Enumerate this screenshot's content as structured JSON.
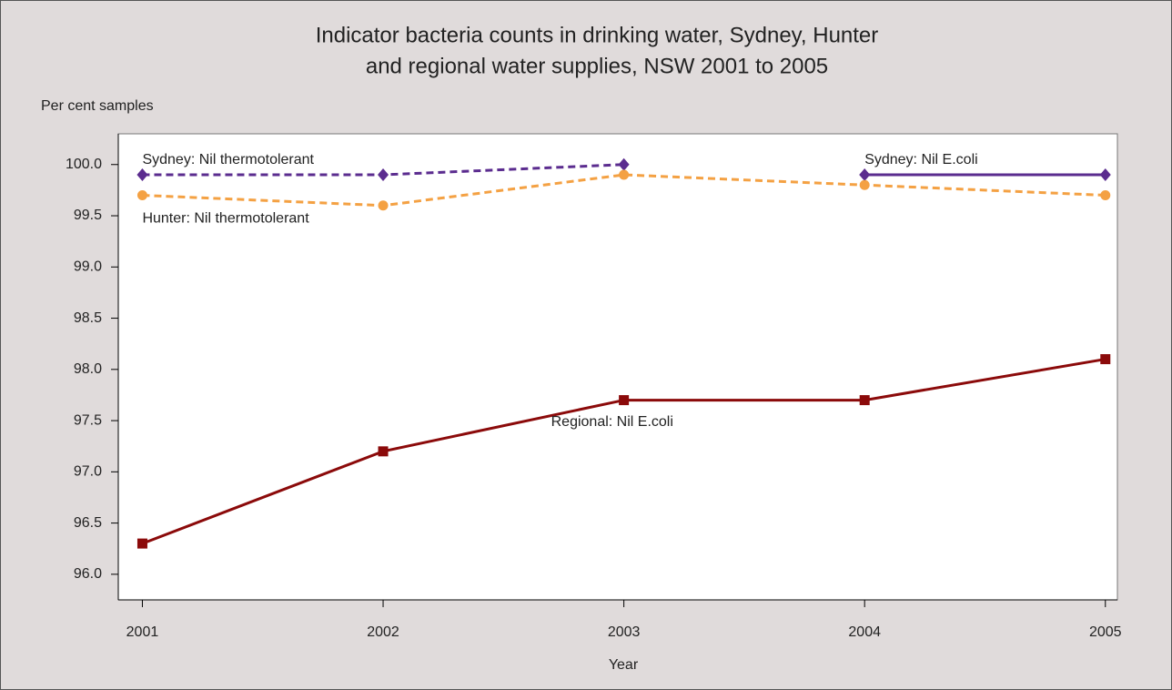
{
  "chart_data": {
    "type": "line",
    "title": [
      "Indicator bacteria counts in drinking water, Sydney, Hunter",
      "and regional water supplies, NSW 2001 to 2005"
    ],
    "y_label": "Per cent samples",
    "x_label": "Year",
    "x": [
      2001,
      2002,
      2003,
      2004,
      2005
    ],
    "series": [
      {
        "name": "Sydney: Nil thermotolerant",
        "color": "#5b2c8f",
        "dashed": true,
        "marker": "diamond",
        "values": [
          99.9,
          99.9,
          100.0,
          null,
          null
        ]
      },
      {
        "name": "Sydney: Nil E.coli",
        "color": "#5b2c8f",
        "dashed": false,
        "marker": "diamond",
        "values": [
          null,
          null,
          null,
          99.9,
          99.9
        ]
      },
      {
        "name": "Hunter: Nil thermotolerant",
        "color": "#f4a143",
        "dashed": true,
        "marker": "circle",
        "values": [
          99.7,
          99.6,
          99.9,
          99.8,
          99.7
        ]
      },
      {
        "name": "Regional: Nil E.coli",
        "color": "#8b0a0a",
        "dashed": false,
        "marker": "square",
        "values": [
          96.3,
          97.2,
          97.7,
          97.7,
          98.1
        ]
      }
    ],
    "xlim": [
      2000.9,
      2005.05
    ],
    "xticks": [
      2001,
      2002,
      2003,
      2004,
      2005
    ],
    "ylim": [
      95.75,
      100.3
    ],
    "yticks": [
      {
        "value": 96,
        "label": "96.0"
      },
      {
        "value": 96.5,
        "label": "96.5"
      },
      {
        "value": 97,
        "label": "97.0"
      },
      {
        "value": 97.5,
        "label": "97.5"
      },
      {
        "value": 98,
        "label": "98.0"
      },
      {
        "value": 98.5,
        "label": "98.5"
      },
      {
        "value": 99,
        "label": "99.0"
      },
      {
        "value": 99.5,
        "label": "99.5"
      },
      {
        "value": 100,
        "label": "100.0"
      }
    ]
  }
}
